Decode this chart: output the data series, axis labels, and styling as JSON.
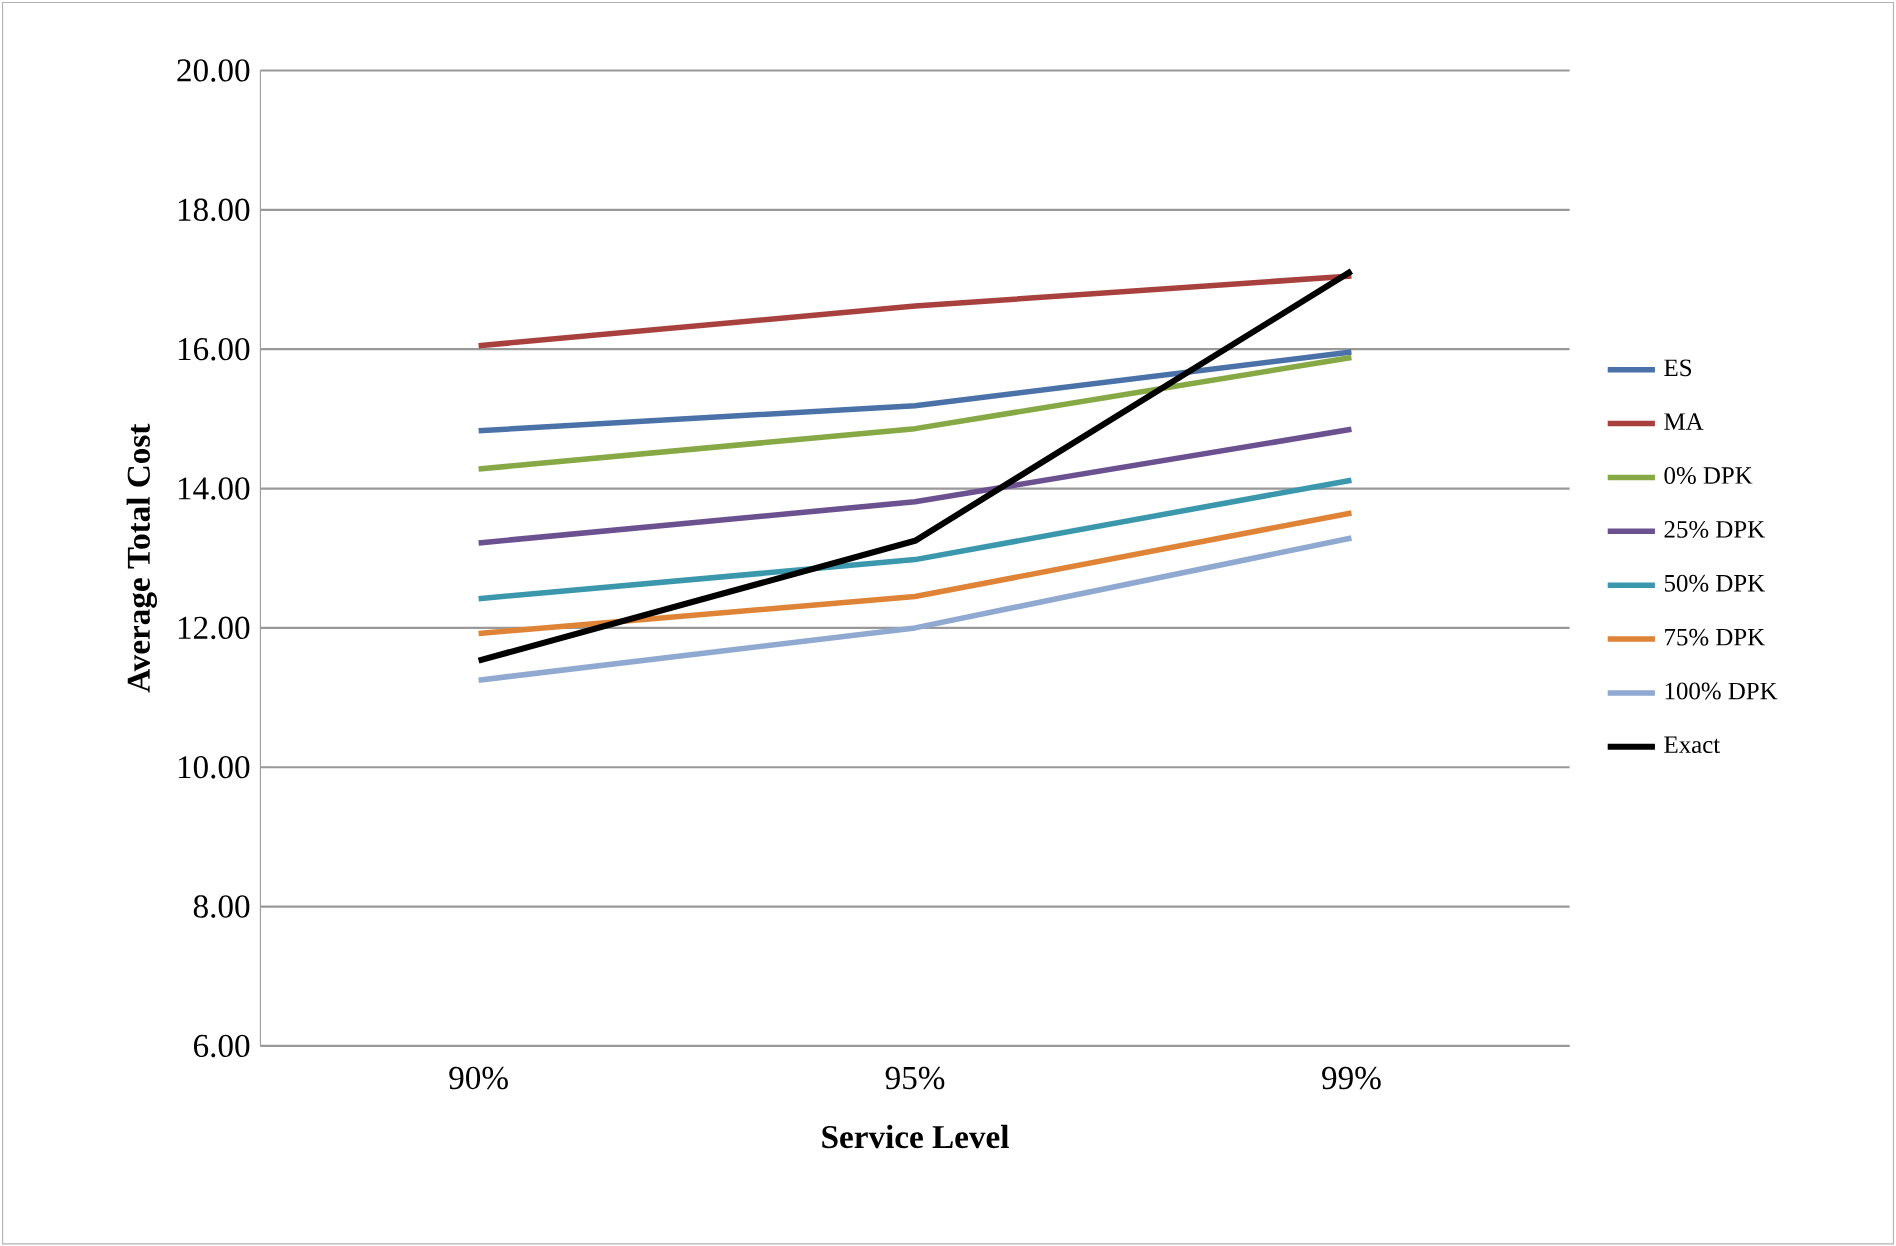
{
  "chart_data": {
    "type": "line",
    "xlabel": "Service Level",
    "ylabel": "Average Total Cost",
    "categories": [
      "90%",
      "95%",
      "99%"
    ],
    "series": [
      {
        "name": "ES",
        "color": "#4a72a8",
        "values": [
          14.83,
          15.19,
          15.96
        ]
      },
      {
        "name": "MA",
        "color": "#a8413d",
        "values": [
          16.05,
          16.62,
          17.05
        ]
      },
      {
        "name": "0% DPK",
        "color": "#86a845",
        "values": [
          14.28,
          14.86,
          15.88
        ]
      },
      {
        "name": "25% DPK",
        "color": "#6c5190",
        "values": [
          13.22,
          13.81,
          14.85
        ]
      },
      {
        "name": "50% DPK",
        "color": "#3b97ac",
        "values": [
          12.42,
          12.98,
          14.12
        ]
      },
      {
        "name": "75% DPK",
        "color": "#df8337",
        "values": [
          11.92,
          12.45,
          13.65
        ]
      },
      {
        "name": "100% DPK",
        "color": "#90a9d0",
        "values": [
          11.25,
          12.0,
          13.29
        ]
      },
      {
        "name": "Exact",
        "color": "#000000",
        "values": [
          11.53,
          13.25,
          17.12
        ]
      }
    ],
    "ylim": [
      6,
      20
    ],
    "yticks": [
      {
        "value": 6,
        "label": "6.00"
      },
      {
        "value": 8,
        "label": "8.00"
      },
      {
        "value": 10,
        "label": "10.00"
      },
      {
        "value": 12,
        "label": "12.00"
      },
      {
        "value": 14,
        "label": "14.00"
      },
      {
        "value": 16,
        "label": "16.00"
      },
      {
        "value": 18,
        "label": "18.00"
      },
      {
        "value": 20,
        "label": "20.00"
      }
    ],
    "grid": "y",
    "legend": "right",
    "marker": "none",
    "line_style": "solid"
  }
}
